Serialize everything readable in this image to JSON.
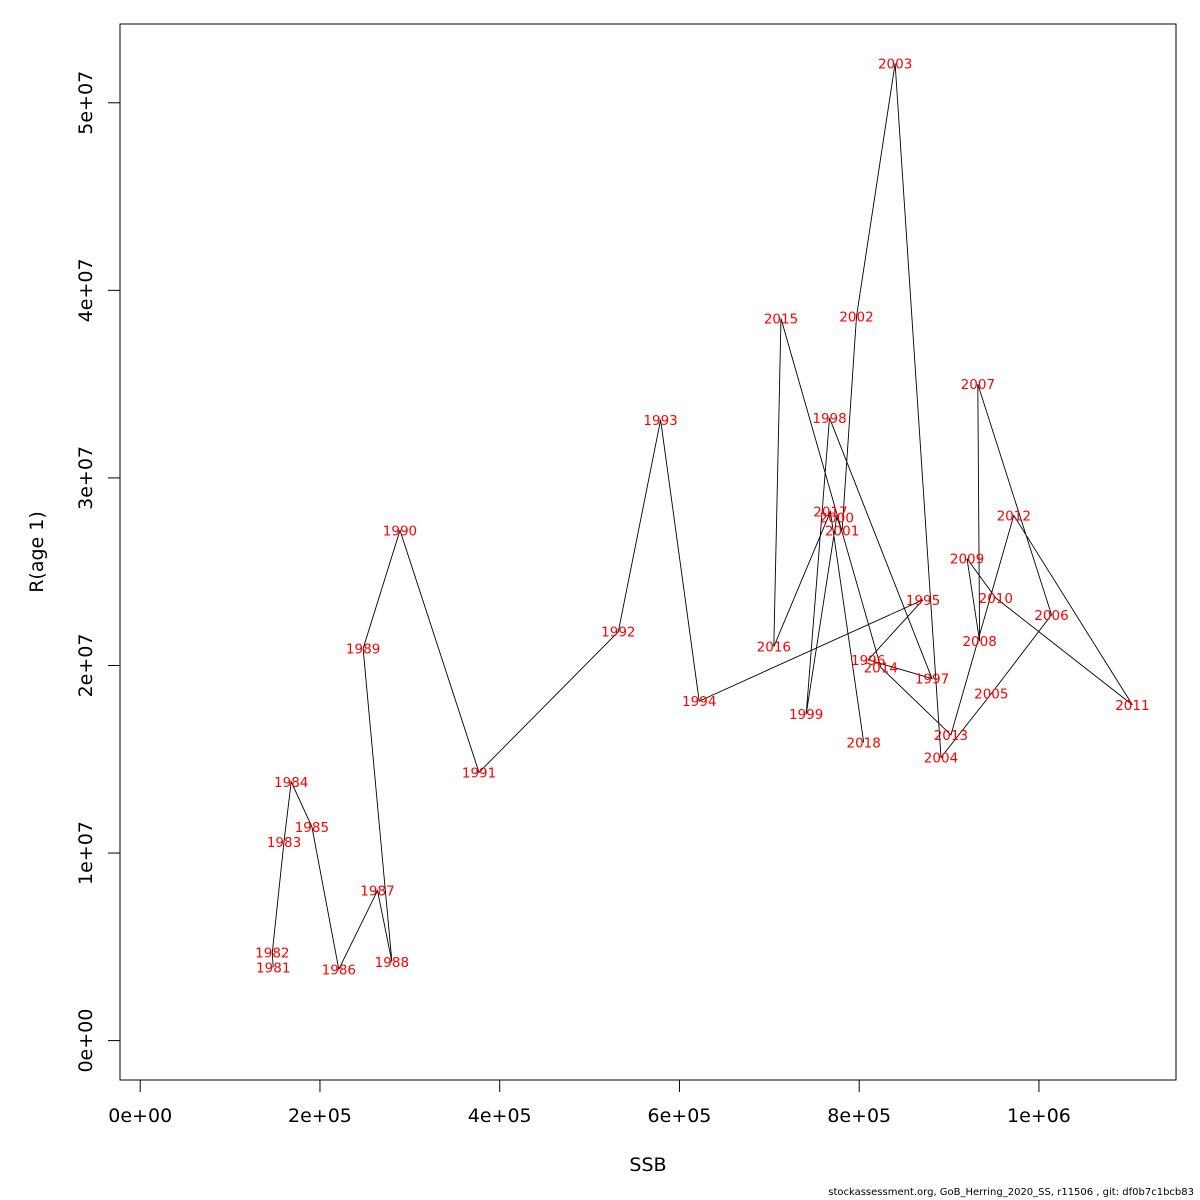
{
  "chart_data": {
    "type": "line",
    "xlabel": "SSB",
    "ylabel": "R(age 1)",
    "xlim": [
      -22500,
      1152500
    ],
    "ylim": [
      -2100000,
      54200000
    ],
    "x_ticks": [
      0,
      200000,
      400000,
      600000,
      800000,
      1000000
    ],
    "x_tick_labels": [
      "0e+00",
      "2e+05",
      "4e+05",
      "6e+05",
      "8e+05",
      "1e+06"
    ],
    "y_ticks": [
      0,
      10000000,
      20000000,
      30000000,
      40000000,
      50000000
    ],
    "y_tick_labels": [
      "0e+00",
      "1e+07",
      "2e+07",
      "3e+07",
      "4e+07",
      "5e+07"
    ],
    "grid": false,
    "line_color": "#000000",
    "label_color": "#ff0000",
    "points": [
      {
        "label": "1981",
        "x": 148000,
        "y": 3900000
      },
      {
        "label": "1982",
        "x": 147000,
        "y": 4700000
      },
      {
        "label": "1983",
        "x": 160000,
        "y": 10600000
      },
      {
        "label": "1984",
        "x": 168000,
        "y": 13800000
      },
      {
        "label": "1985",
        "x": 191000,
        "y": 11400000
      },
      {
        "label": "1986",
        "x": 221000,
        "y": 3800000
      },
      {
        "label": "1987",
        "x": 264000,
        "y": 8000000
      },
      {
        "label": "1988",
        "x": 280000,
        "y": 4200000
      },
      {
        "label": "1989",
        "x": 248000,
        "y": 20900000
      },
      {
        "label": "1990",
        "x": 289000,
        "y": 27200000
      },
      {
        "label": "1991",
        "x": 377000,
        "y": 14300000
      },
      {
        "label": "1992",
        "x": 532000,
        "y": 21800000
      },
      {
        "label": "1993",
        "x": 579000,
        "y": 33100000
      },
      {
        "label": "1994",
        "x": 622000,
        "y": 18100000
      },
      {
        "label": "1995",
        "x": 871000,
        "y": 23500000
      },
      {
        "label": "1996",
        "x": 810000,
        "y": 20300000
      },
      {
        "label": "1997",
        "x": 881000,
        "y": 19300000
      },
      {
        "label": "1998",
        "x": 767000,
        "y": 33200000
      },
      {
        "label": "1999",
        "x": 741000,
        "y": 17400000
      },
      {
        "label": "2000",
        "x": 775000,
        "y": 27900000
      },
      {
        "label": "2001",
        "x": 781000,
        "y": 27200000
      },
      {
        "label": "2002",
        "x": 797000,
        "y": 38600000
      },
      {
        "label": "2003",
        "x": 840000,
        "y": 52100000
      },
      {
        "label": "2004",
        "x": 891000,
        "y": 15100000
      },
      {
        "label": "2005",
        "x": 947000,
        "y": 18500000
      },
      {
        "label": "2006",
        "x": 1014000,
        "y": 22700000
      },
      {
        "label": "2007",
        "x": 932000,
        "y": 35000000
      },
      {
        "label": "2008",
        "x": 934000,
        "y": 21300000
      },
      {
        "label": "2009",
        "x": 920000,
        "y": 25700000
      },
      {
        "label": "2010",
        "x": 952000,
        "y": 23600000
      },
      {
        "label": "2011",
        "x": 1104000,
        "y": 17900000
      },
      {
        "label": "2012",
        "x": 972000,
        "y": 28000000
      },
      {
        "label": "2013",
        "x": 902000,
        "y": 16300000
      },
      {
        "label": "2014",
        "x": 824000,
        "y": 19900000
      },
      {
        "label": "2015",
        "x": 713000,
        "y": 38500000
      },
      {
        "label": "2016",
        "x": 705000,
        "y": 21000000
      },
      {
        "label": "2017",
        "x": 768000,
        "y": 28200000
      },
      {
        "label": "2018",
        "x": 805000,
        "y": 15900000
      }
    ]
  },
  "footer": "stockassessment.org, GoB_Herring_2020_SS, r11506 , git: df0b7c1bcb83"
}
